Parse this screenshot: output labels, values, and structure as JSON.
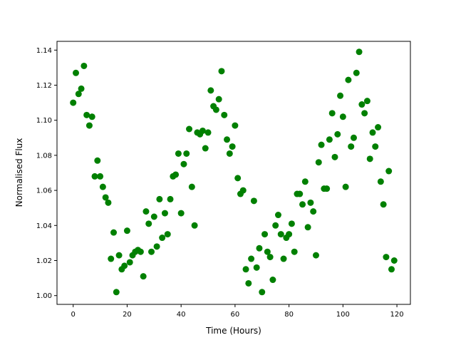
{
  "chart_data": {
    "type": "scatter",
    "title": "",
    "xlabel": "Time (Hours)",
    "ylabel": "Normalised Flux",
    "xlim": [
      -6,
      125
    ],
    "ylim": [
      0.995,
      1.145
    ],
    "xticks": [
      0,
      20,
      40,
      60,
      80,
      100,
      120
    ],
    "xtick_labels": [
      "0",
      "20",
      "40",
      "60",
      "80",
      "100",
      "120"
    ],
    "yticks": [
      1.0,
      1.02,
      1.04,
      1.06,
      1.08,
      1.1,
      1.12,
      1.14
    ],
    "ytick_labels": [
      "1.00",
      "1.02",
      "1.04",
      "1.06",
      "1.08",
      "1.10",
      "1.12",
      "1.14"
    ],
    "grid": false,
    "marker_color": "#008000",
    "x": [
      0,
      1,
      2,
      3,
      4,
      5,
      6,
      7,
      8,
      9,
      10,
      11,
      12,
      13,
      14,
      15,
      16,
      17,
      18,
      19,
      20,
      21,
      22,
      23,
      24,
      25,
      26,
      27,
      28,
      29,
      30,
      31,
      32,
      33,
      34,
      35,
      36,
      37,
      38,
      39,
      40,
      41,
      42,
      43,
      44,
      45,
      46,
      47,
      48,
      49,
      50,
      51,
      52,
      53,
      54,
      55,
      56,
      57,
      58,
      59,
      60,
      61,
      62,
      63,
      64,
      65,
      66,
      67,
      68,
      69,
      70,
      71,
      72,
      73,
      74,
      75,
      76,
      77,
      78,
      79,
      80,
      81,
      82,
      83,
      84,
      85,
      86,
      87,
      88,
      89,
      90,
      91,
      92,
      93,
      94,
      95,
      96,
      97,
      98,
      99,
      100,
      101,
      102,
      103,
      104,
      105,
      106,
      107,
      108,
      109,
      110,
      111,
      112,
      113,
      114,
      115,
      116,
      117,
      118,
      119
    ],
    "y": [
      1.11,
      1.127,
      1.115,
      1.118,
      1.131,
      1.103,
      1.097,
      1.102,
      1.068,
      1.077,
      1.068,
      1.062,
      1.056,
      1.053,
      1.021,
      1.036,
      1.002,
      1.023,
      1.015,
      1.017,
      1.037,
      1.019,
      1.023,
      1.025,
      1.026,
      1.025,
      1.011,
      1.048,
      1.041,
      1.025,
      1.045,
      1.028,
      1.055,
      1.033,
      1.047,
      1.035,
      1.055,
      1.068,
      1.069,
      1.081,
      1.047,
      1.075,
      1.081,
      1.095,
      1.062,
      1.04,
      1.093,
      1.092,
      1.094,
      1.084,
      1.093,
      1.117,
      1.108,
      1.106,
      1.112,
      1.128,
      1.103,
      1.089,
      1.081,
      1.085,
      1.097,
      1.067,
      1.058,
      1.06,
      1.015,
      1.007,
      1.021,
      1.054,
      1.016,
      1.027,
      1.002,
      1.035,
      1.025,
      1.022,
      1.009,
      1.04,
      1.046,
      1.035,
      1.021,
      1.033,
      1.035,
      1.041,
      1.025,
      1.058,
      1.058,
      1.052,
      1.065,
      1.039,
      1.053,
      1.048,
      1.023,
      1.076,
      1.086,
      1.061,
      1.061,
      1.089,
      1.104,
      1.079,
      1.092,
      1.114,
      1.102,
      1.062,
      1.123,
      1.085,
      1.09,
      1.127,
      1.139,
      1.109,
      1.104,
      1.111,
      1.078,
      1.093,
      1.085,
      1.096,
      1.065,
      1.052,
      1.022,
      1.071,
      1.015,
      1.02
    ]
  }
}
